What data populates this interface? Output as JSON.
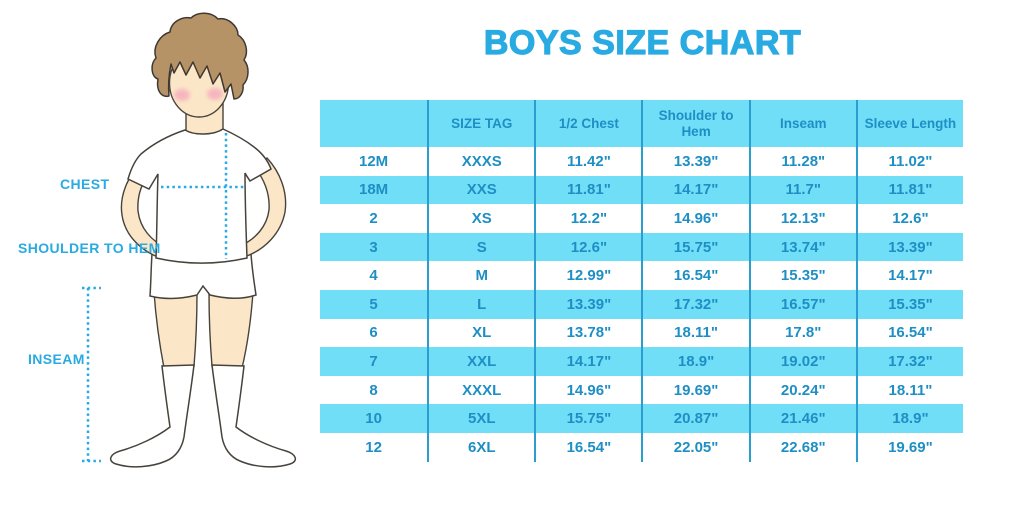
{
  "title": "BOYS SIZE CHART",
  "illustration": {
    "chest_label": "CHEST",
    "shoulder_to_hem_label": "SHOULDER TO HEM",
    "inseam_label": "INSEAM"
  },
  "table": {
    "headers": [
      "",
      "SIZE TAG",
      "1/2 Chest",
      "Shoulder to Hem",
      "Inseam",
      "Sleeve Length"
    ],
    "rows": [
      [
        "12M",
        "XXXS",
        "11.42\"",
        "13.39\"",
        "11.28\"",
        "11.02\""
      ],
      [
        "18M",
        "XXS",
        "11.81\"",
        "14.17\"",
        "11.7\"",
        "11.81\""
      ],
      [
        "2",
        "XS",
        "12.2\"",
        "14.96\"",
        "12.13\"",
        "12.6\""
      ],
      [
        "3",
        "S",
        "12.6\"",
        "15.75\"",
        "13.74\"",
        "13.39\""
      ],
      [
        "4",
        "M",
        "12.99\"",
        "16.54\"",
        "15.35\"",
        "14.17\""
      ],
      [
        "5",
        "L",
        "13.39\"",
        "17.32\"",
        "16.57\"",
        "15.35\""
      ],
      [
        "6",
        "XL",
        "13.78\"",
        "18.11\"",
        "17.8\"",
        "16.54\""
      ],
      [
        "7",
        "XXL",
        "14.17\"",
        "18.9\"",
        "19.02\"",
        "17.32\""
      ],
      [
        "8",
        "XXXL",
        "14.96\"",
        "19.69\"",
        "20.24\"",
        "18.11\""
      ],
      [
        "10",
        "5XL",
        "15.75\"",
        "20.87\"",
        "21.46\"",
        "18.9\""
      ],
      [
        "12",
        "6XL",
        "16.54\"",
        "22.05\"",
        "22.68\"",
        "19.69\""
      ]
    ]
  },
  "colors": {
    "accent_blue": "#29abe2",
    "row_band": "#71def8",
    "table_text": "#1e8fc4",
    "divider": "#2b9ecf"
  }
}
